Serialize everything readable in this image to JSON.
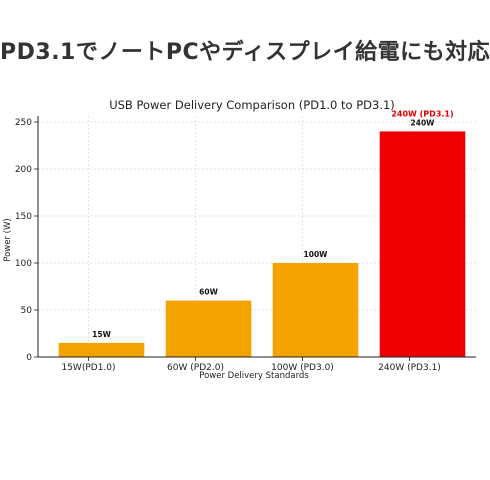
{
  "headline": "PD3.1でノートPCやディスプレイ給電にも対応",
  "chart_data": {
    "type": "bar",
    "title": "USB Power Delivery Comparison (PD1.0 to PD3.1)",
    "xlabel": "Power Delivery Standards",
    "ylabel": "Power (W)",
    "categories": [
      "15W(PD1.0)",
      "60W (PD2.0)",
      "100W (PD3.0)",
      "240W (PD3.1)"
    ],
    "values": [
      15,
      60,
      100,
      240
    ],
    "data_labels": [
      "15W",
      "60W",
      "100W",
      "240W"
    ],
    "colors": [
      "#f5a300",
      "#f5a300",
      "#f5a300",
      "#ee0000"
    ],
    "ylim": [
      0,
      250
    ],
    "yticks": [
      0,
      50,
      100,
      150,
      200,
      250
    ],
    "grid": true,
    "annotation": {
      "text": "240W (PD3.1)",
      "category_index": 3,
      "color": "#e00000"
    }
  }
}
